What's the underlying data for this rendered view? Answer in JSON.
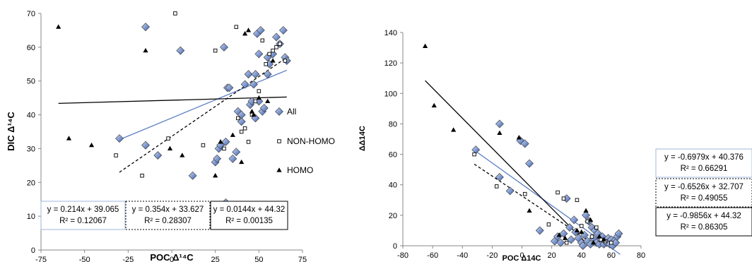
{
  "chart_data": [
    {
      "type": "scatter",
      "xlabel": "POC Δ¹⁴C",
      "ylabel": "DIC Δ¹⁴C",
      "xlim": [
        -75,
        75
      ],
      "ylim": [
        0,
        70
      ],
      "xticks": [
        -75,
        -50,
        -25,
        0,
        25,
        50,
        75
      ],
      "yticks": [
        0,
        10,
        20,
        30,
        40,
        50,
        60,
        70
      ],
      "grid": false,
      "legend_position": "right",
      "series": [
        {
          "name": "All",
          "marker": "diamond",
          "color": "#5b7fc6",
          "x": [
            -15,
            -30,
            -15,
            -8,
            5,
            12,
            25,
            27,
            26,
            28,
            30,
            31,
            32,
            31,
            33,
            35,
            37,
            40,
            38,
            40,
            42,
            44,
            45,
            46,
            47,
            48,
            48,
            49,
            50,
            50,
            51,
            52,
            53,
            55,
            55,
            56,
            58,
            60,
            62,
            64,
            65,
            66
          ],
          "y": [
            66,
            33,
            31,
            28,
            59,
            22,
            26,
            30,
            27,
            31,
            60,
            14,
            48,
            32,
            48,
            27,
            29,
            38,
            41,
            40,
            49,
            52,
            43,
            44,
            49,
            52,
            39,
            64,
            58,
            44,
            65,
            41,
            42,
            57,
            52,
            55,
            58,
            63,
            61,
            65,
            57,
            56
          ]
        },
        {
          "name": "NON-HOMO",
          "marker": "square",
          "color": "#000000",
          "x": [
            -32,
            -17,
            -2,
            2,
            18,
            25,
            30,
            37,
            38,
            40,
            42,
            44,
            46,
            48,
            50,
            52,
            54,
            56,
            58,
            60,
            62,
            65
          ],
          "y": [
            28,
            22,
            33,
            70,
            31,
            59,
            30,
            66,
            39,
            35,
            36,
            32,
            40,
            44,
            47,
            62,
            55,
            58,
            59,
            60,
            61,
            56
          ]
        },
        {
          "name": "HOMO",
          "marker": "triangle",
          "color": "#000000",
          "x": [
            -65,
            -59,
            -46,
            -15,
            -1,
            6,
            25,
            28,
            35,
            40,
            42,
            44,
            46,
            47,
            50,
            55,
            58
          ],
          "y": [
            66,
            33,
            31,
            59,
            30,
            28,
            22,
            32,
            34,
            26,
            64,
            65,
            41,
            40,
            45,
            44,
            56
          ]
        }
      ],
      "trendlines": [
        {
          "series": "All",
          "style": "solid",
          "color": "#5b7fc6",
          "slope": 0.214,
          "intercept": 39.065,
          "x_range": [
            -30,
            66
          ],
          "equation": "y = 0.214x + 39.065",
          "r2": "R² = 0.12067"
        },
        {
          "series": "NON-HOMO",
          "style": "dashed",
          "color": "#000000",
          "slope": 0.354,
          "intercept": 33.627,
          "x_range": [
            -30,
            66
          ],
          "equation": "y = 0.354x + 33.627",
          "r2": "R² = 0.28307"
        },
        {
          "series": "HOMO",
          "style": "solid",
          "color": "#000000",
          "slope": 0.0144,
          "intercept": 44.32,
          "x_range": [
            -65,
            66
          ],
          "equation": "y = 0.0144x + 44.32",
          "r2": "R² = 0.00135"
        }
      ]
    },
    {
      "type": "scatter",
      "xlabel": "POC Δ14C",
      "ylabel": "ΔΔ14C",
      "xlim": [
        -80,
        80
      ],
      "ylim": [
        0,
        140
      ],
      "xticks": [
        -80,
        -60,
        -40,
        -20,
        0,
        20,
        40,
        60,
        80
      ],
      "yticks": [
        0,
        20,
        40,
        60,
        80,
        100,
        120,
        140
      ],
      "grid": false,
      "series": [
        {
          "name": "All",
          "marker": "diamond",
          "color": "#5b7fc6",
          "x": [
            -31,
            -15,
            -15,
            -8,
            -1,
            2,
            5,
            12,
            22,
            24,
            26,
            28,
            30,
            32,
            33,
            35,
            36,
            38,
            40,
            41,
            42,
            43,
            44,
            45,
            46,
            47,
            48,
            49,
            50,
            51,
            52,
            53,
            54,
            55,
            56,
            57,
            58,
            59,
            60,
            61,
            62,
            63,
            64,
            65
          ],
          "y": [
            63,
            80,
            45,
            36,
            69,
            67,
            54,
            10,
            3,
            6,
            2,
            8,
            31,
            12,
            4,
            17,
            9,
            5,
            2,
            0,
            7,
            20,
            3,
            16,
            1,
            12,
            5,
            10,
            2,
            8,
            1,
            4,
            6,
            1,
            3,
            2,
            5,
            1,
            4,
            0,
            3,
            2,
            6,
            8
          ]
        },
        {
          "name": "NON-HOMO",
          "marker": "square",
          "color": "#000000",
          "x": [
            -32,
            -17,
            2,
            18,
            24,
            28,
            30,
            37,
            40,
            44,
            47,
            50,
            53,
            56,
            60
          ],
          "y": [
            60,
            39,
            34,
            14,
            35,
            31,
            2,
            30,
            13,
            16,
            6,
            12,
            4,
            3,
            2
          ]
        },
        {
          "name": "HOMO",
          "marker": "triangle",
          "color": "#000000",
          "x": [
            -65,
            -59,
            -46,
            -15,
            -2,
            5,
            25,
            29,
            37,
            40,
            43,
            46,
            48,
            52,
            55
          ],
          "y": [
            131,
            92,
            76,
            74,
            71,
            23,
            7,
            5,
            10,
            9,
            23,
            17,
            2,
            6,
            4
          ]
        }
      ],
      "trendlines": [
        {
          "series": "All",
          "style": "solid",
          "color": "#5b7fc6",
          "slope": -0.6979,
          "intercept": 40.376,
          "x_range": [
            -31,
            66
          ],
          "equation": "y = -0.6979x + 40.376",
          "r2": "R² = 0.66291"
        },
        {
          "series": "NON-HOMO",
          "style": "dashed",
          "color": "#000000",
          "slope": -0.6526,
          "intercept": 32.707,
          "x_range": [
            -32,
            50
          ],
          "equation": "y = -0.6526x + 32.707",
          "r2": "R² = 0.49055"
        },
        {
          "series": "HOMO",
          "style": "solid",
          "color": "#000000",
          "slope": -0.9856,
          "intercept": 44.32,
          "x_range": [
            -65,
            45
          ],
          "equation": "y = -0.9856x + 44.32",
          "r2": "R² = 0.86305"
        }
      ]
    }
  ]
}
